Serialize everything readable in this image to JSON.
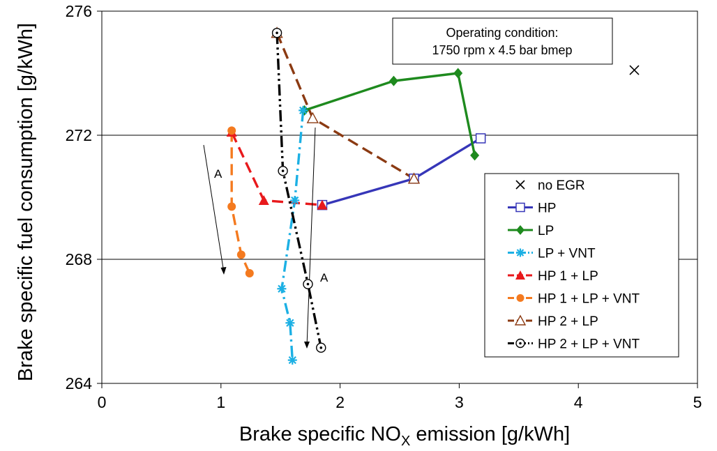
{
  "chart_data": {
    "type": "line",
    "xlabel_main": "Brake specific NO",
    "xlabel_sub": "X",
    "xlabel_rest": " emission [g/kWh]",
    "ylabel": "Brake specific fuel consumption [g/kWh]",
    "xlim": [
      0,
      5
    ],
    "ylim": [
      264,
      276
    ],
    "xticks": [
      0,
      1,
      2,
      3,
      4,
      5
    ],
    "yticks": [
      264,
      268,
      272,
      276
    ],
    "ygrid": [
      268,
      272
    ],
    "annotation": [
      "Operating condition:",
      "1750 rpm x 4.5 bar bmep"
    ],
    "arrow_label_left": "A",
    "arrow_label_right": "A",
    "legend_position": "right",
    "series": [
      {
        "name": "no EGR",
        "color": "#000000",
        "marker": "x",
        "line": "none",
        "points": [
          [
            4.47,
            274.1
          ]
        ]
      },
      {
        "name": "HP",
        "color": "#3636B8",
        "marker": "square-open",
        "line": "solid",
        "points": [
          [
            1.85,
            269.75
          ],
          [
            2.62,
            270.6
          ],
          [
            3.18,
            271.9
          ]
        ]
      },
      {
        "name": "LP",
        "color": "#1E8A1E",
        "marker": "diamond",
        "line": "solid",
        "points": [
          [
            1.7,
            272.8
          ],
          [
            2.45,
            273.75
          ],
          [
            2.99,
            274.0
          ],
          [
            3.13,
            271.35
          ]
        ]
      },
      {
        "name": "LP + VNT",
        "color": "#1CB0E4",
        "marker": "star",
        "line": "dashdot",
        "points": [
          [
            1.69,
            272.8
          ],
          [
            1.62,
            269.9
          ],
          [
            1.51,
            267.05
          ],
          [
            1.58,
            265.95
          ],
          [
            1.6,
            264.75
          ]
        ]
      },
      {
        "name": "HP 1 + LP",
        "color": "#E8191C",
        "marker": "triangle",
        "line": "dash",
        "points": [
          [
            1.09,
            272.1
          ],
          [
            1.36,
            269.9
          ],
          [
            1.85,
            269.75
          ]
        ]
      },
      {
        "name": "HP 1 + LP + VNT",
        "color": "#F47A1F",
        "marker": "circle",
        "line": "dash",
        "points": [
          [
            1.09,
            272.15
          ],
          [
            1.09,
            269.7
          ],
          [
            1.17,
            268.15
          ],
          [
            1.24,
            267.55
          ]
        ]
      },
      {
        "name": "HP 2 + LP",
        "color": "#8B3A12",
        "marker": "triangle-open",
        "line": "dash",
        "points": [
          [
            1.47,
            275.3
          ],
          [
            1.77,
            272.55
          ],
          [
            2.62,
            270.6
          ]
        ]
      },
      {
        "name": "HP 2 + LP + VNT",
        "color": "#000000",
        "marker": "circle-dot",
        "line": "dashdotdot",
        "points": [
          [
            1.47,
            275.3
          ],
          [
            1.52,
            270.85
          ],
          [
            1.73,
            267.2
          ],
          [
            1.84,
            265.15
          ]
        ]
      }
    ]
  }
}
